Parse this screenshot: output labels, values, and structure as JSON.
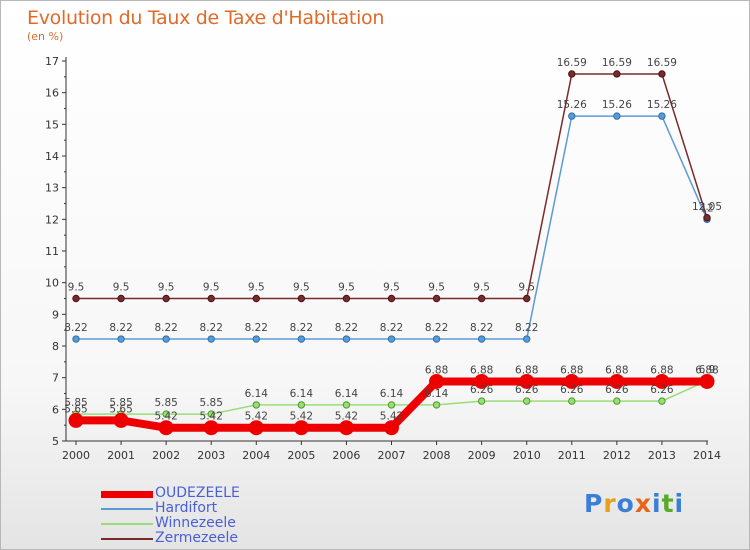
{
  "header": {
    "title": "Evolution du Taux de Taxe d'Habitation",
    "subtitle": "(en %)"
  },
  "logo": {
    "text": "Proxiti"
  },
  "chart_data": {
    "type": "line",
    "title": "Evolution du Taux de Taxe d'Habitation",
    "ylabel": "(en %)",
    "xlabel": "",
    "ylim": [
      5,
      17
    ],
    "yticks": [
      5,
      6,
      7,
      8,
      9,
      10,
      11,
      12,
      13,
      14,
      15,
      16,
      17
    ],
    "grid": false,
    "legend_position": "bottom-left",
    "x": [
      "2000",
      "2001",
      "2002",
      "2003",
      "2004",
      "2005",
      "2006",
      "2007",
      "2008",
      "2009",
      "2010",
      "2011",
      "2012",
      "2013",
      "2014"
    ],
    "series": [
      {
        "name": "OUDEZEELE",
        "color": "#ee0000",
        "values": [
          5.65,
          5.65,
          5.42,
          5.42,
          5.42,
          5.42,
          5.42,
          5.42,
          6.88,
          6.88,
          6.88,
          6.88,
          6.88,
          6.88,
          6.88
        ],
        "labels": [
          "5.65",
          "5.65",
          "5.42",
          "5.42",
          "5.42",
          "5.42",
          "5.42",
          "5.42",
          "6.88",
          "6.88",
          "6.88",
          "6.88",
          "6.88",
          "6.88",
          "6.88"
        ]
      },
      {
        "name": "Hardifort",
        "color": "#5b9bd5",
        "values": [
          8.22,
          8.22,
          8.22,
          8.22,
          8.22,
          8.22,
          8.22,
          8.22,
          8.22,
          8.22,
          8.22,
          15.26,
          15.26,
          15.26,
          12
        ],
        "labels": [
          "8.22",
          "8.22",
          "8.22",
          "8.22",
          "8.22",
          "8.22",
          "8.22",
          "8.22",
          "8.22",
          "8.22",
          "8.22",
          "15.26",
          "15.26",
          "15.26",
          "12"
        ]
      },
      {
        "name": "Winnezeele",
        "color": "#99dd77",
        "values": [
          5.85,
          5.85,
          5.85,
          5.85,
          6.14,
          6.14,
          6.14,
          6.14,
          6.14,
          6.26,
          6.26,
          6.26,
          6.26,
          6.26,
          6.9
        ],
        "labels": [
          "5.85",
          "5.85",
          "5.85",
          "5.85",
          "6.14",
          "6.14",
          "6.14",
          "6.14",
          "6.14",
          "6.26",
          "6.26",
          "6.26",
          "6.26",
          "6.26",
          "6.9"
        ]
      },
      {
        "name": "Zermezeele",
        "color": "#7a2a2a",
        "values": [
          9.5,
          9.5,
          9.5,
          9.5,
          9.5,
          9.5,
          9.5,
          9.5,
          9.5,
          9.5,
          9.5,
          16.59,
          16.59,
          16.59,
          12.05
        ],
        "labels": [
          "9.5",
          "9.5",
          "9.5",
          "9.5",
          "9.5",
          "9.5",
          "9.5",
          "9.5",
          "9.5",
          "9.5",
          "9.5",
          "16.59",
          "16.59",
          "16.59",
          "12.05"
        ]
      }
    ]
  }
}
